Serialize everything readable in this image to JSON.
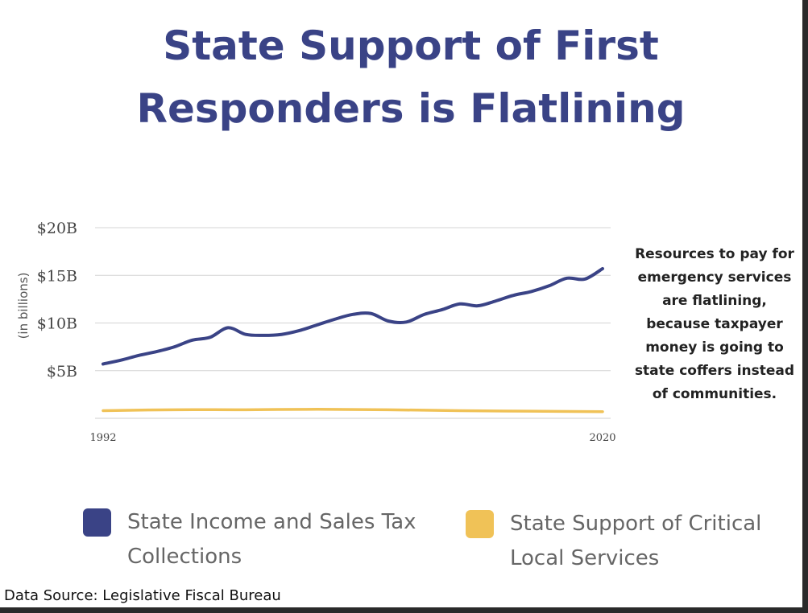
{
  "title_line1": "State Support of First",
  "title_line2": "Responders is Flatlining",
  "note": "Resources to pay for emergency services are flatlining, because taxpayer money is going to state coffers instead of communities.",
  "source": "Data Source: Legislative Fiscal Bureau",
  "colors": {
    "title": "#3a4386",
    "grid": "#d4d4d4"
  },
  "chart_data": {
    "type": "line",
    "title": "State Support of First Responders is Flatlining",
    "ylabel": "(in billions)",
    "xlabel": "",
    "ylim": [
      0,
      20
    ],
    "yticks": [
      {
        "value": 5,
        "label": "$5B"
      },
      {
        "value": 10,
        "label": "$10B"
      },
      {
        "value": 15,
        "label": "$15B"
      },
      {
        "value": 20,
        "label": "$20B"
      }
    ],
    "xlim": [
      1992,
      2020
    ],
    "xtick_labels": [
      {
        "value": 1992,
        "label": "1992"
      },
      {
        "value": 2020,
        "label": "2020"
      }
    ],
    "grid": true,
    "legend_position": "bottom",
    "series": [
      {
        "name": "State Income and Sales Tax Collections",
        "color": "#3a4386",
        "x": [
          1992,
          1993,
          1994,
          1995,
          1996,
          1997,
          1998,
          1999,
          2000,
          2001,
          2002,
          2003,
          2004,
          2005,
          2006,
          2007,
          2008,
          2009,
          2010,
          2011,
          2012,
          2013,
          2014,
          2015,
          2016,
          2017,
          2018,
          2019,
          2020
        ],
        "values": [
          5.7,
          6.1,
          6.6,
          7.0,
          7.5,
          8.2,
          8.5,
          9.5,
          8.8,
          8.7,
          8.8,
          9.2,
          9.8,
          10.4,
          10.9,
          11.0,
          10.2,
          10.1,
          10.9,
          11.4,
          12.0,
          11.8,
          12.3,
          12.9,
          13.3,
          13.9,
          14.7,
          14.6,
          15.7
        ]
      },
      {
        "name": "State Support of Critical Local Services",
        "color": "#f0c257",
        "x": [
          1992,
          1996,
          2000,
          2004,
          2008,
          2012,
          2016,
          2020
        ],
        "values": [
          0.8,
          0.9,
          0.9,
          0.95,
          0.9,
          0.8,
          0.75,
          0.7
        ]
      }
    ]
  }
}
